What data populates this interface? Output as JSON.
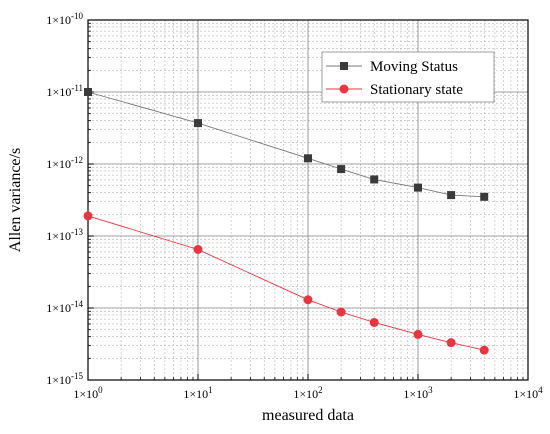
{
  "chart_data": {
    "type": "line",
    "xscale": "log",
    "yscale": "log",
    "xlabel": "measured data",
    "ylabel": "Allen variance/s",
    "xlim": [
      1,
      10000
    ],
    "ylim": [
      1e-15,
      1e-10
    ],
    "grid": true,
    "legend_position": "top-right",
    "x_ticks": [
      {
        "base": "1×10",
        "exp": "0"
      },
      {
        "base": "1×10",
        "exp": "1"
      },
      {
        "base": "1×10",
        "exp": "2"
      },
      {
        "base": "1×10",
        "exp": "3"
      },
      {
        "base": "1×10",
        "exp": "4"
      }
    ],
    "y_ticks": [
      {
        "base": "1×10",
        "exp": "-15"
      },
      {
        "base": "1×10",
        "exp": "-14"
      },
      {
        "base": "1×10",
        "exp": "-13"
      },
      {
        "base": "1×10",
        "exp": "-12"
      },
      {
        "base": "1×10",
        "exp": "-11"
      },
      {
        "base": "1×10",
        "exp": "-10"
      }
    ],
    "series": [
      {
        "name": "Moving Status",
        "marker": "square",
        "color": "#3a3a3a",
        "line_color": "#7a7a7a",
        "x": [
          1,
          10,
          100,
          200,
          400,
          1000,
          2000,
          4000
        ],
        "y": [
          1e-11,
          3.7e-12,
          1.2e-12,
          8.5e-13,
          6.1e-13,
          4.7e-13,
          3.7e-13,
          3.5e-13
        ]
      },
      {
        "name": "Stationary state",
        "marker": "circle",
        "color": "#e8353f",
        "line_color": "#e8353f",
        "x": [
          1,
          10,
          100,
          200,
          400,
          1000,
          2000,
          4000
        ],
        "y": [
          1.9e-13,
          6.5e-14,
          1.3e-14,
          8.8e-15,
          6.3e-15,
          4.3e-15,
          3.3e-15,
          2.6e-15
        ]
      }
    ]
  }
}
